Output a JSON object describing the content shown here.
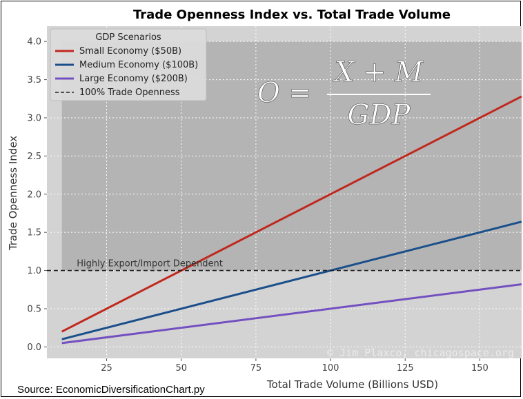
{
  "chart_data": {
    "type": "line",
    "title": "Trade Openness Index vs. Total Trade Volume",
    "xlabel": "Total Trade Volume (Billions USD)",
    "ylabel": "Trade Openness Index",
    "xlim": [
      5,
      164
    ],
    "ylim": [
      -0.15,
      4.2
    ],
    "xticks": [
      25,
      50,
      75,
      100,
      125,
      150
    ],
    "yticks": [
      0.0,
      0.5,
      1.0,
      1.5,
      2.0,
      2.5,
      3.0,
      3.5,
      4.0
    ],
    "ytick_labels": [
      "0.0",
      "0.5",
      "1.0",
      "1.5",
      "2.0",
      "2.5",
      "3.0",
      "3.5",
      "4.0"
    ],
    "grid": true,
    "legend_title": "GDP Scenarios",
    "legend_position": "upper-left",
    "series": [
      {
        "name": "Small Economy ($50B)",
        "color": "#c0281e",
        "x": [
          10,
          164
        ],
        "y": [
          0.2,
          3.28
        ]
      },
      {
        "name": "Medium Economy ($100B)",
        "color": "#1b4f8a",
        "x": [
          10,
          164
        ],
        "y": [
          0.1,
          1.64
        ]
      },
      {
        "name": "Large Economy ($200B)",
        "color": "#7350c0",
        "x": [
          10,
          164
        ],
        "y": [
          0.05,
          0.82
        ]
      }
    ],
    "reference_line": {
      "name": "100% Trade Openness",
      "y": 1.0,
      "style": "dashed",
      "color": "#222222"
    },
    "annotations": [
      {
        "text": "Highly Export/Import Dependent",
        "x": 15,
        "y": 1.03
      }
    ],
    "shaded_region": {
      "x": [
        10,
        164
      ],
      "y": [
        1.0,
        4.0
      ],
      "color": "#b4b4b4"
    },
    "formula": {
      "lhs": "O",
      "equals": "=",
      "numerator": "X + M",
      "denominator": "GDP"
    },
    "watermark": "© Jim Plaxco, chicagospace.org"
  },
  "footer": {
    "source": "Source: EconomicDiversificationChart.py"
  }
}
